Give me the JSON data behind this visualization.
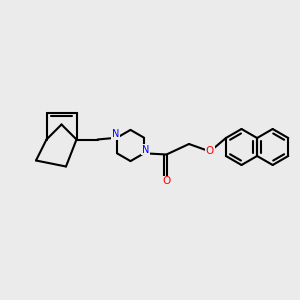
{
  "background_color": "#ebebeb",
  "bond_color": "#000000",
  "N_color": "#0000ff",
  "O_color": "#ff0000",
  "line_width": 1.5,
  "figsize": [
    3.0,
    3.0
  ],
  "dpi": 100,
  "xlim": [
    0,
    10
  ],
  "ylim": [
    0,
    10
  ]
}
